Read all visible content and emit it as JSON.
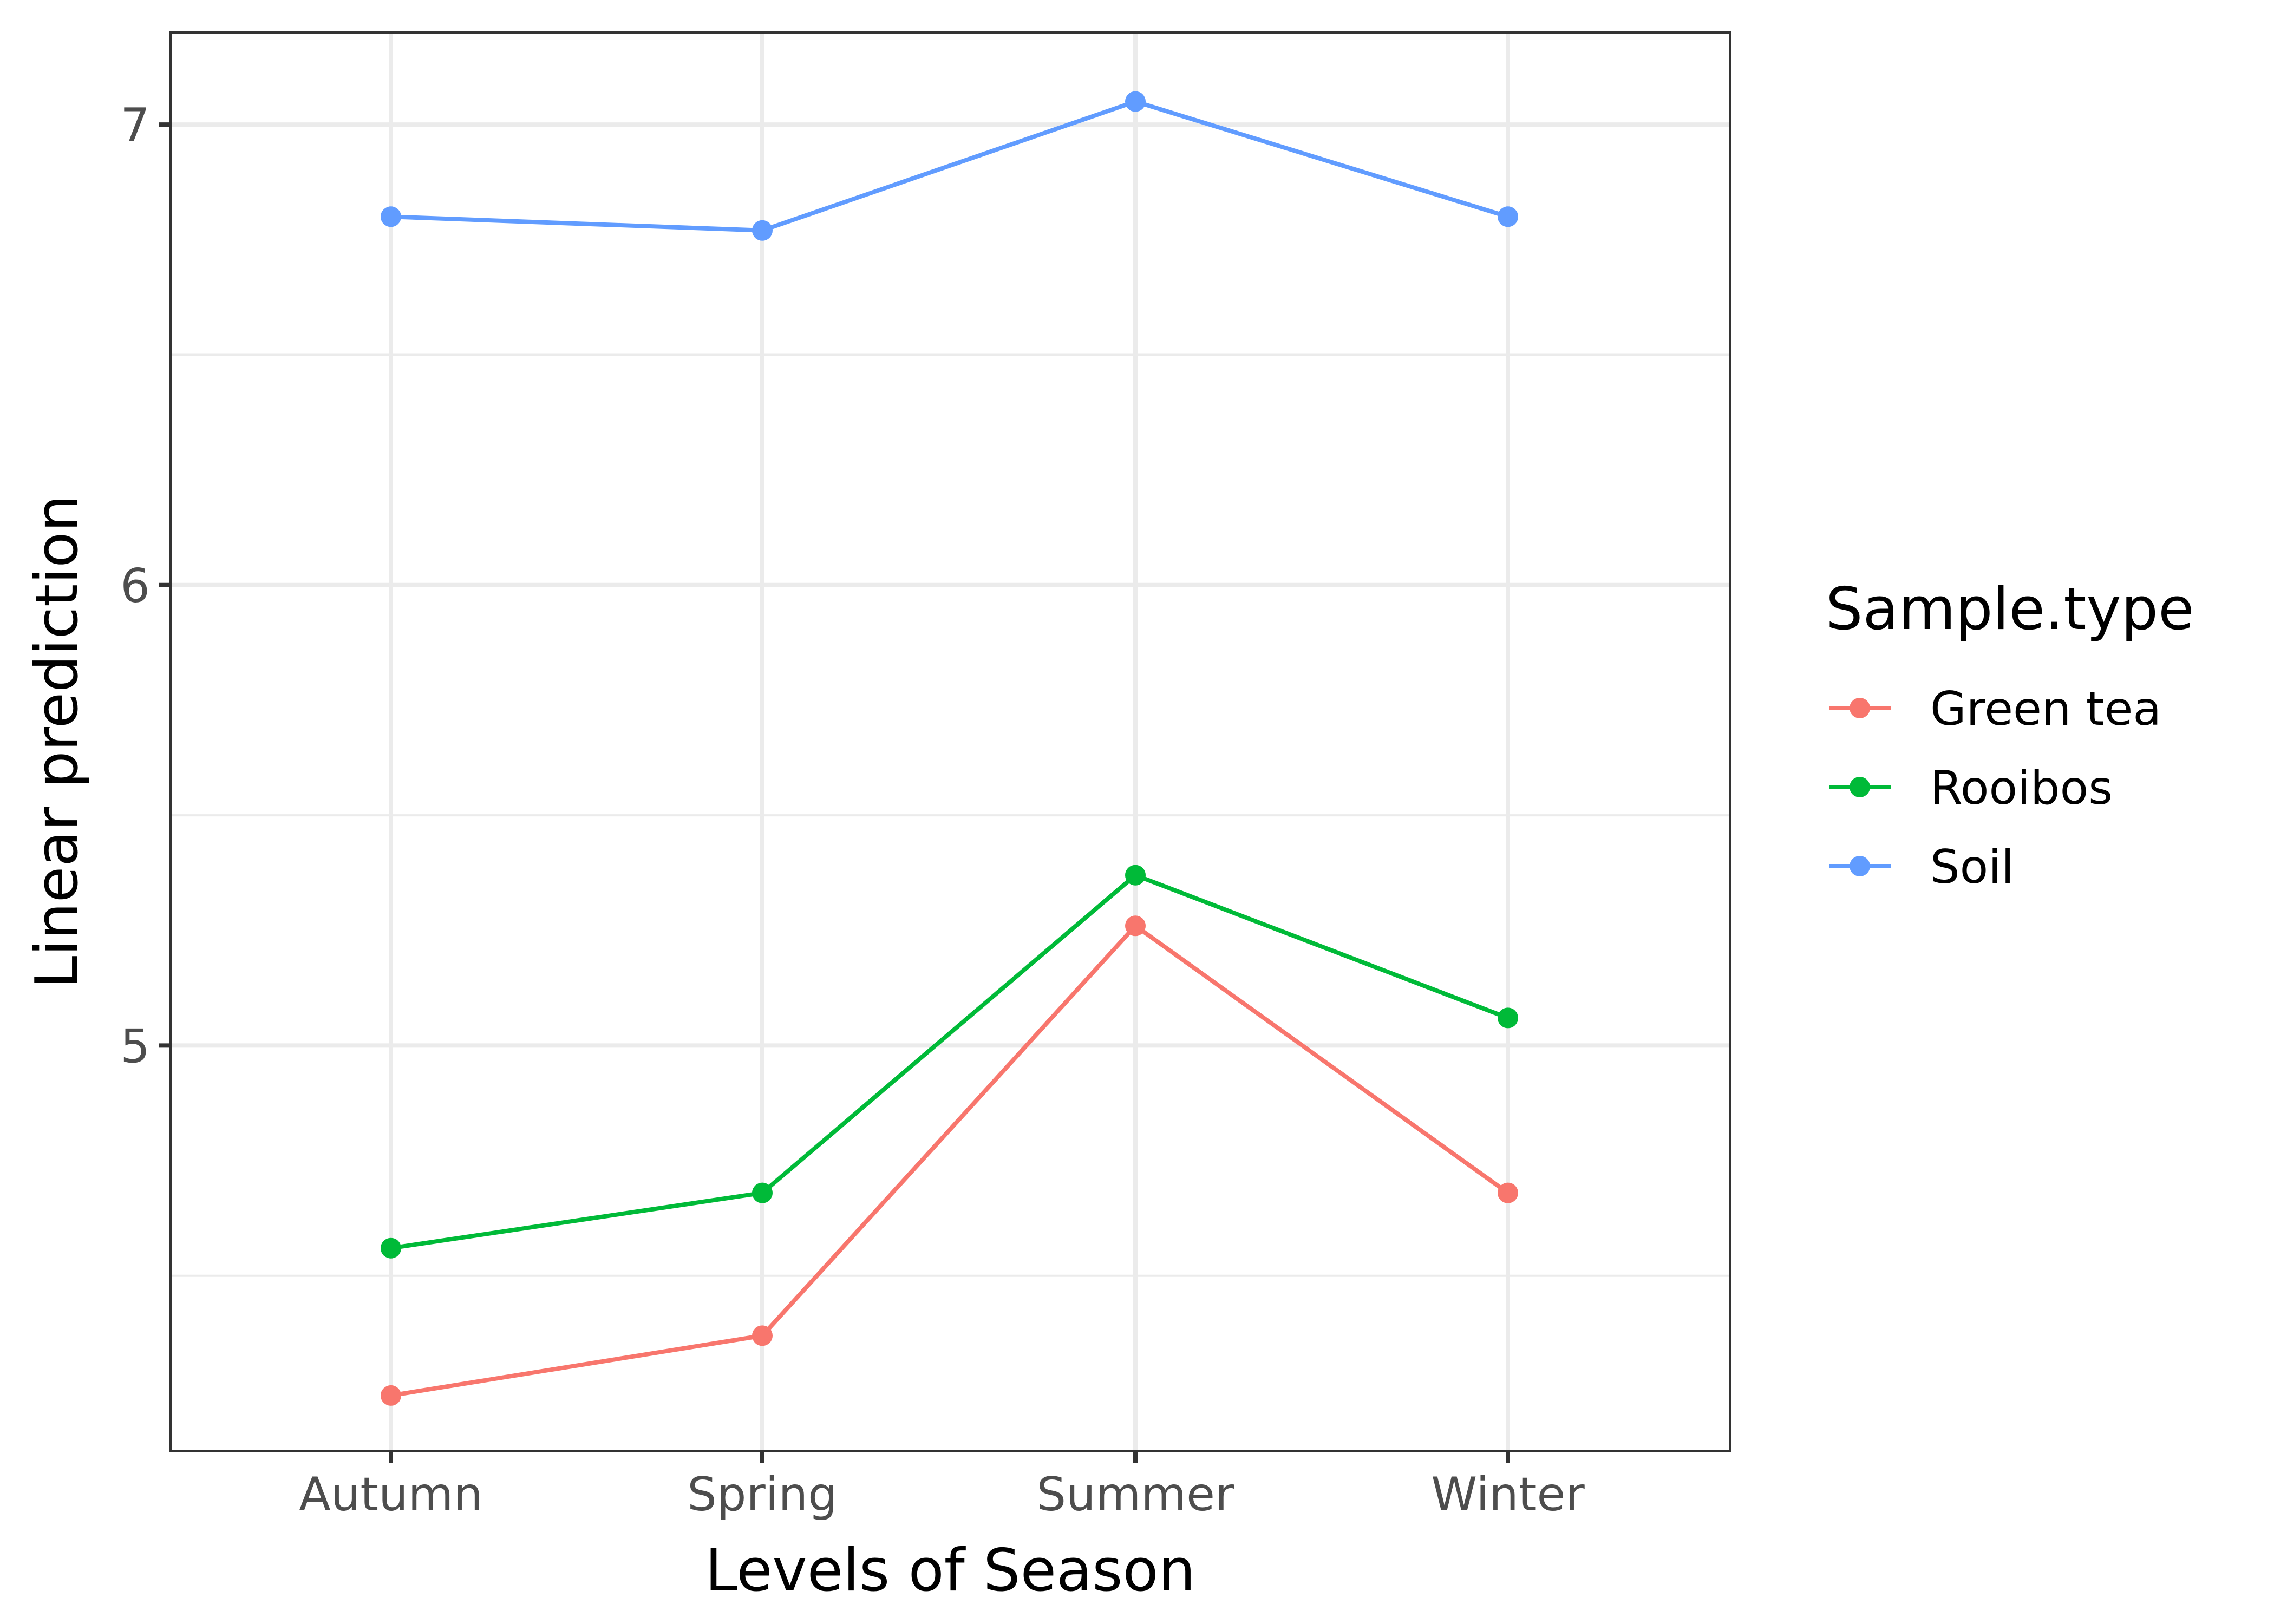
{
  "chart_data": {
    "type": "line",
    "title": "",
    "xlabel": "Levels of Season",
    "ylabel": "Linear prediction",
    "categories": [
      "Autumn",
      "Spring",
      "Summer",
      "Winter"
    ],
    "ylim": [
      4.12,
      7.2
    ],
    "y_ticks": [
      5,
      6,
      7
    ],
    "y_minor_ticks": [
      4.5,
      5.5,
      6.5
    ],
    "grid": true,
    "legend": {
      "title": "Sample.type",
      "position": "right"
    },
    "series": [
      {
        "name": "Green tea",
        "color": "#F8766D",
        "values": [
          4.24,
          4.37,
          5.26,
          4.68
        ]
      },
      {
        "name": "Rooibos",
        "color": "#00BA38",
        "values": [
          4.56,
          4.68,
          5.37,
          5.06
        ]
      },
      {
        "name": "Soil",
        "color": "#619CFF",
        "values": [
          6.8,
          6.77,
          7.05,
          6.8
        ]
      }
    ]
  }
}
